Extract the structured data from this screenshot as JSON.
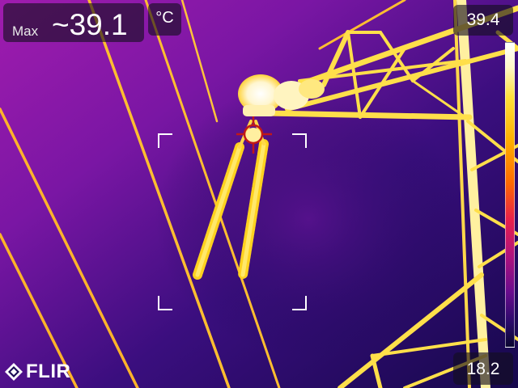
{
  "measurement": {
    "max_label": "Max",
    "max_value": "~39.1",
    "unit": "°C"
  },
  "scale": {
    "top_value": "39.4",
    "bottom_value": "18.2",
    "palette": "iron"
  },
  "brand": {
    "logo_text": "FLIR"
  },
  "colors": {
    "background_deep": "#1a0a55",
    "background_purple": "#8a1aa8",
    "hot_white": "#fffbe6",
    "hot_yellow": "#ffd21f",
    "spot_marker": "#c01818"
  }
}
